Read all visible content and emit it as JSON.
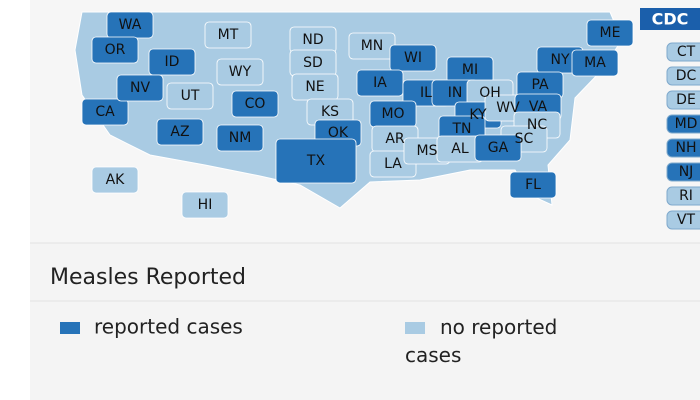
{
  "logo": {
    "text": "CDC"
  },
  "map": {
    "title": "Measles Reported",
    "legend": [
      {
        "label": "reported cases",
        "color": "#2673b8"
      },
      {
        "label": "no reported cases",
        "color": "#a9cbe3"
      }
    ],
    "states": [
      {
        "label": "WA",
        "reported": true
      },
      {
        "label": "OR",
        "reported": true
      },
      {
        "label": "ID",
        "reported": true
      },
      {
        "label": "MT",
        "reported": false
      },
      {
        "label": "ND",
        "reported": false
      },
      {
        "label": "MN",
        "reported": false
      },
      {
        "label": "WI",
        "reported": true
      },
      {
        "label": "MI",
        "reported": true
      },
      {
        "label": "NY",
        "reported": true
      },
      {
        "label": "ME",
        "reported": true
      },
      {
        "label": "MA",
        "reported": true
      },
      {
        "label": "CA",
        "reported": true
      },
      {
        "label": "NV",
        "reported": true
      },
      {
        "label": "UT",
        "reported": false
      },
      {
        "label": "WY",
        "reported": false
      },
      {
        "label": "SD",
        "reported": false
      },
      {
        "label": "NE",
        "reported": false
      },
      {
        "label": "IA",
        "reported": true
      },
      {
        "label": "IL",
        "reported": true
      },
      {
        "label": "IN",
        "reported": true
      },
      {
        "label": "OH",
        "reported": false
      },
      {
        "label": "PA",
        "reported": true
      },
      {
        "label": "CO",
        "reported": true
      },
      {
        "label": "KS",
        "reported": false
      },
      {
        "label": "MO",
        "reported": true
      },
      {
        "label": "KY",
        "reported": true
      },
      {
        "label": "WV",
        "reported": false
      },
      {
        "label": "VA",
        "reported": true
      },
      {
        "label": "AZ",
        "reported": true
      },
      {
        "label": "NM",
        "reported": true
      },
      {
        "label": "OK",
        "reported": true
      },
      {
        "label": "AR",
        "reported": false
      },
      {
        "label": "TN",
        "reported": true
      },
      {
        "label": "NC",
        "reported": false
      },
      {
        "label": "SC",
        "reported": false
      },
      {
        "label": "TX",
        "reported": true
      },
      {
        "label": "LA",
        "reported": false
      },
      {
        "label": "MS",
        "reported": false
      },
      {
        "label": "AL",
        "reported": false
      },
      {
        "label": "GA",
        "reported": true
      },
      {
        "label": "FL",
        "reported": true
      },
      {
        "label": "AK",
        "reported": false
      },
      {
        "label": "HI",
        "reported": false
      }
    ],
    "small_states": [
      {
        "label": "CT",
        "reported": false
      },
      {
        "label": "DC",
        "reported": false
      },
      {
        "label": "DE",
        "reported": false
      },
      {
        "label": "MD",
        "reported": true
      },
      {
        "label": "NH",
        "reported": true
      },
      {
        "label": "NJ",
        "reported": true
      },
      {
        "label": "RI",
        "reported": false
      },
      {
        "label": "VT",
        "reported": false
      }
    ]
  }
}
